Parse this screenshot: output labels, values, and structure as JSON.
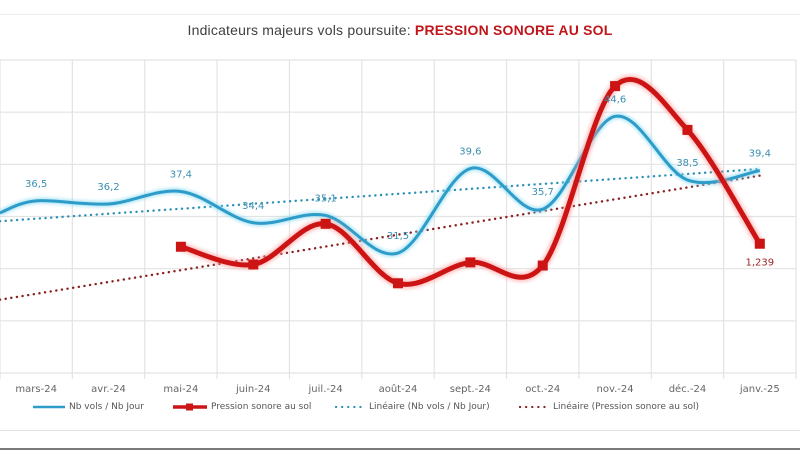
{
  "title": {
    "prefix": "Indicateurs majeurs vols poursuite: ",
    "highlight": "PRESSION SONORE AU SOL"
  },
  "colors": {
    "blue": "#2e9cc8",
    "blue_glow": "#8fdcf3",
    "red": "#cc1414",
    "red_glow": "#ff9a9a",
    "blue_trend": "#2b8fb5",
    "red_trend": "#8a2020",
    "grid": "#e3e3e3",
    "label_blue": "#3a8fb0",
    "label_red": "#a0262a",
    "tick_text": "#666666"
  },
  "chart_data": {
    "type": "line",
    "title": "Indicateurs majeurs vols poursuite: PRESSION SONORE AU SOL",
    "xlabel": "",
    "ylabel": "",
    "categories": [
      "mars-24",
      "avr.-24",
      "mai-24",
      "juin-24",
      "juil.-24",
      "août-24",
      "sept.-24",
      "oct.-24",
      "nov.-24",
      "déc.-24",
      "janv.-25"
    ],
    "grid": true,
    "legend_position": "bottom",
    "series": [
      {
        "name": "Nb vols / Nb Jour",
        "axis": "primary",
        "ylim": [
          20,
          50
        ],
        "values": [
          36.5,
          36.2,
          37.4,
          34.4,
          35.1,
          31.5,
          39.6,
          35.7,
          44.6,
          38.5,
          39.4
        ],
        "labels": [
          "36,5",
          "36,2",
          "37,4",
          "34,4",
          "35,1",
          "31,5",
          "39,6",
          "35,7",
          "44,6",
          "38,5",
          "39,4"
        ],
        "style": "smooth-solid",
        "trendline": {
          "name": "Linéaire (Nb vols / Nb Jour)",
          "type": "linear"
        }
      },
      {
        "name": "Pression sonore au sol",
        "axis": "secondary",
        "ylim": [
          0,
          3
        ],
        "values": [
          null,
          null,
          1.21,
          1.04,
          1.43,
          0.86,
          1.06,
          1.03,
          2.75,
          2.33,
          1.239
        ],
        "labels": [
          null,
          null,
          null,
          null,
          null,
          null,
          null,
          null,
          null,
          null,
          "1,239"
        ],
        "style": "smooth-solid-square-markers",
        "trendline": {
          "name": "Linéaire (Pression sonore au sol)",
          "type": "linear"
        }
      }
    ]
  },
  "legend": [
    {
      "label": "Nb vols / Nb Jour",
      "kind": "solid-blue"
    },
    {
      "label": "Pression sonore au sol",
      "kind": "solid-red-marker"
    },
    {
      "label": "Linéaire (Nb vols / Nb Jour)",
      "kind": "dotted-blue"
    },
    {
      "label": "Linéaire (Pression sonore au sol)",
      "kind": "dotted-red"
    }
  ]
}
